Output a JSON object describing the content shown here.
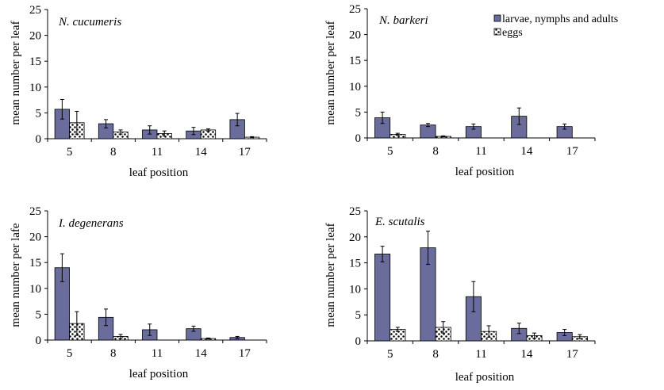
{
  "chart_data": {
    "type": "bar",
    "legend": {
      "placement": "top-right",
      "entries": [
        "larvae, nymphs and adults",
        "eggs"
      ]
    },
    "colors": {
      "adults_fill": "#6a6c9c",
      "eggs_fill": "#ffffff",
      "eggs_dots": "#000000"
    },
    "panels": [
      {
        "title": "N. cucumeris",
        "xlabel": "leaf position",
        "ylabel": "mean number per leaf",
        "categories": [
          "5",
          "8",
          "11",
          "14",
          "17"
        ],
        "ylim": [
          0,
          25
        ],
        "yticks": [
          "0",
          "5",
          "10",
          "15",
          "20",
          "25"
        ],
        "series": [
          {
            "name": "larvae, nymphs and adults",
            "values": [
              5.7,
              2.9,
              1.7,
              1.5,
              3.7
            ],
            "errors": [
              1.9,
              0.8,
              0.8,
              0.7,
              1.2
            ]
          },
          {
            "name": "eggs",
            "values": [
              3.1,
              1.3,
              1.0,
              1.7,
              0.3
            ],
            "errors": [
              2.2,
              0.4,
              0.5,
              0.2,
              0.1
            ]
          }
        ]
      },
      {
        "title": "N. barkeri",
        "xlabel": "leaf position",
        "ylabel": "mean number per leaf",
        "categories": [
          "5",
          "8",
          "11",
          "14",
          "17"
        ],
        "ylim": [
          0,
          25
        ],
        "yticks": [
          "0",
          "5",
          "10",
          "15",
          "20",
          "25"
        ],
        "series": [
          {
            "name": "larvae, nymphs and adults",
            "values": [
              3.9,
              2.5,
              2.2,
              4.2,
              2.2
            ],
            "errors": [
              1.1,
              0.3,
              0.5,
              1.6,
              0.5
            ]
          },
          {
            "name": "eggs",
            "values": [
              0.7,
              0.3,
              0,
              0,
              0
            ],
            "errors": [
              0.2,
              0.1,
              0,
              0,
              0
            ]
          }
        ]
      },
      {
        "title": "I. degenerans",
        "xlabel": "leaf position",
        "ylabel": "mean number per lafe",
        "categories": [
          "5",
          "8",
          "11",
          "14",
          "17"
        ],
        "ylim": [
          0,
          25
        ],
        "yticks": [
          "0",
          "5",
          "10",
          "15",
          "20",
          "25"
        ],
        "series": [
          {
            "name": "larvae, nymphs and adults",
            "values": [
              14.0,
              4.4,
              2.0,
              2.2,
              0.5
            ],
            "errors": [
              2.7,
              1.6,
              1.1,
              0.5,
              0.2
            ]
          },
          {
            "name": "eggs",
            "values": [
              3.2,
              0.7,
              0,
              0.3,
              0
            ],
            "errors": [
              2.3,
              0.4,
              0,
              0.1,
              0
            ]
          }
        ]
      },
      {
        "title": "E. scutalis",
        "xlabel": "leaf position",
        "ylabel": "mean number per leaf",
        "categories": [
          "5",
          "8",
          "11",
          "14",
          "17"
        ],
        "ylim": [
          0,
          25
        ],
        "yticks": [
          "0",
          "5",
          "10",
          "15",
          "20",
          "25"
        ],
        "series": [
          {
            "name": "larvae, nymphs and adults",
            "values": [
              16.7,
              17.9,
              8.5,
              2.4,
              1.6
            ],
            "errors": [
              1.5,
              3.2,
              2.9,
              1.0,
              0.6
            ]
          },
          {
            "name": "eggs",
            "values": [
              2.2,
              2.6,
              1.8,
              1.0,
              0.8
            ],
            "errors": [
              0.4,
              1.1,
              1.1,
              0.5,
              0.4
            ]
          }
        ]
      }
    ]
  }
}
